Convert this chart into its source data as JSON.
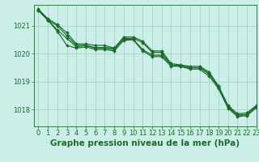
{
  "background_color": "#cceee8",
  "grid_color": "#aad4ce",
  "line_color": "#1a6b2a",
  "xlabel": "Graphe pression niveau de la mer (hPa)",
  "xlabel_fontsize": 7.5,
  "tick_fontsize": 6.0,
  "xlim": [
    -0.5,
    23
  ],
  "ylim": [
    1017.4,
    1021.75
  ],
  "yticks": [
    1018,
    1019,
    1020,
    1021
  ],
  "xticks": [
    0,
    1,
    2,
    3,
    4,
    5,
    6,
    7,
    8,
    9,
    10,
    11,
    12,
    13,
    14,
    15,
    16,
    17,
    18,
    19,
    20,
    21,
    22,
    23
  ],
  "series": [
    [
      1021.6,
      1021.25,
      1021.05,
      1020.75,
      1020.35,
      1020.35,
      1020.3,
      1020.3,
      1020.2,
      1020.6,
      1020.6,
      1020.45,
      1020.1,
      1020.1,
      1019.65,
      1019.6,
      1019.55,
      1019.55,
      1019.35,
      1018.85,
      1018.15,
      1017.85,
      1017.88,
      1018.15
    ],
    [
      1021.55,
      1021.2,
      1021.0,
      1020.65,
      1020.3,
      1020.3,
      1020.2,
      1020.2,
      1020.15,
      1020.55,
      1020.55,
      1020.4,
      1020.05,
      1020.05,
      1019.6,
      1019.55,
      1019.5,
      1019.5,
      1019.3,
      1018.8,
      1018.1,
      1017.8,
      1017.83,
      1018.12
    ],
    [
      1021.55,
      1021.2,
      1020.85,
      1020.55,
      1020.25,
      1020.3,
      1020.22,
      1020.22,
      1020.2,
      1020.52,
      1020.52,
      1020.15,
      1019.95,
      1019.95,
      1019.6,
      1019.58,
      1019.5,
      1019.5,
      1019.28,
      1018.82,
      1018.12,
      1017.8,
      1017.82,
      1018.12
    ],
    [
      1021.55,
      1021.2,
      1020.8,
      1020.3,
      1020.2,
      1020.25,
      1020.15,
      1020.15,
      1020.1,
      1020.48,
      1020.5,
      1020.1,
      1019.9,
      1019.9,
      1019.55,
      1019.55,
      1019.45,
      1019.45,
      1019.2,
      1018.75,
      1018.05,
      1017.75,
      1017.78,
      1018.07
    ]
  ]
}
